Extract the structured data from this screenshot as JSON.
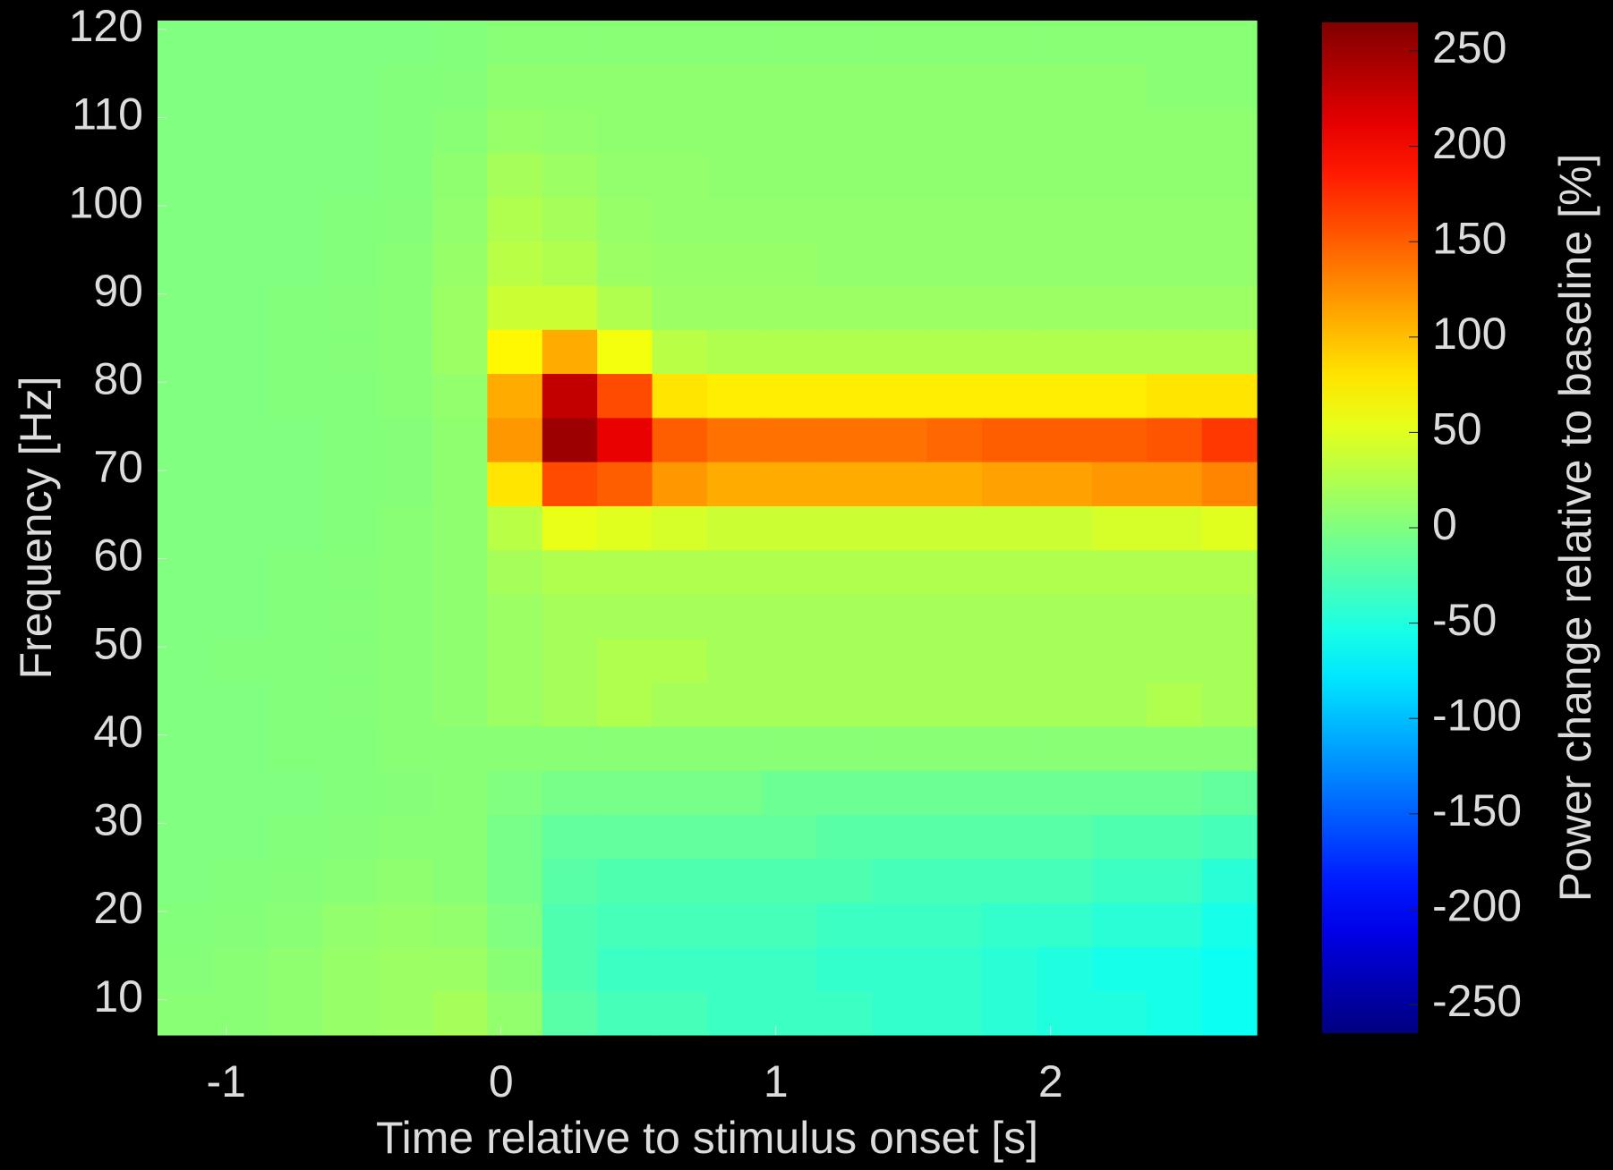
{
  "chart_data": {
    "type": "heatmap",
    "xlabel": "Time relative to stimulus onset [s]",
    "ylabel": "Frequency [Hz]",
    "colormap": "jet",
    "x": [
      -1.15,
      -0.95,
      -0.75,
      -0.55,
      -0.35,
      -0.15,
      0.05,
      0.25,
      0.45,
      0.65,
      0.85,
      1.05,
      1.25,
      1.45,
      1.65,
      1.85,
      2.05,
      2.25,
      2.45,
      2.65
    ],
    "y": [
      8.5,
      13.5,
      18.5,
      23.5,
      28.5,
      33.5,
      38.5,
      43.5,
      48.5,
      53.5,
      58.5,
      63.5,
      68.5,
      73.5,
      78.5,
      83.5,
      88.5,
      93.5,
      98.5,
      103.5,
      108.5,
      113.5,
      118.5
    ],
    "values": [
      [
        5,
        5,
        8,
        12,
        15,
        20,
        10,
        -20,
        -30,
        -30,
        -35,
        -35,
        -35,
        -40,
        -40,
        -45,
        -50,
        -50,
        -55,
        -60
      ],
      [
        3,
        5,
        8,
        12,
        15,
        15,
        5,
        -25,
        -35,
        -35,
        -35,
        -35,
        -40,
        -40,
        -40,
        -45,
        -50,
        -55,
        -55,
        -60
      ],
      [
        2,
        3,
        5,
        10,
        12,
        10,
        0,
        -25,
        -30,
        -30,
        -30,
        -30,
        -35,
        -35,
        -35,
        -40,
        -40,
        -45,
        -45,
        -55
      ],
      [
        0,
        2,
        3,
        5,
        8,
        5,
        -5,
        -20,
        -25,
        -25,
        -25,
        -25,
        -25,
        -30,
        -30,
        -30,
        -30,
        -35,
        -35,
        -45
      ],
      [
        0,
        0,
        2,
        3,
        5,
        5,
        -5,
        -15,
        -15,
        -15,
        -15,
        -15,
        -20,
        -20,
        -20,
        -20,
        -20,
        -25,
        -25,
        -30
      ],
      [
        0,
        0,
        0,
        2,
        3,
        5,
        0,
        -5,
        -5,
        -5,
        -5,
        -10,
        -10,
        -10,
        -10,
        -10,
        -10,
        -10,
        -10,
        -15
      ],
      [
        0,
        0,
        2,
        2,
        5,
        5,
        5,
        5,
        5,
        5,
        5,
        5,
        5,
        5,
        5,
        5,
        5,
        5,
        5,
        5
      ],
      [
        0,
        0,
        2,
        3,
        5,
        8,
        15,
        20,
        25,
        20,
        20,
        20,
        20,
        20,
        20,
        20,
        20,
        20,
        25,
        20
      ],
      [
        0,
        2,
        2,
        3,
        5,
        8,
        15,
        20,
        25,
        25,
        20,
        20,
        20,
        20,
        20,
        20,
        20,
        20,
        20,
        20
      ],
      [
        0,
        0,
        2,
        3,
        5,
        8,
        15,
        20,
        20,
        20,
        20,
        20,
        20,
        20,
        20,
        20,
        20,
        20,
        20,
        20
      ],
      [
        0,
        0,
        2,
        3,
        5,
        8,
        20,
        25,
        25,
        25,
        25,
        25,
        25,
        25,
        25,
        25,
        25,
        25,
        25,
        25
      ],
      [
        0,
        0,
        0,
        2,
        5,
        8,
        30,
        55,
        50,
        45,
        40,
        40,
        40,
        40,
        40,
        40,
        40,
        45,
        45,
        50
      ],
      [
        0,
        0,
        0,
        2,
        3,
        8,
        80,
        160,
        150,
        120,
        110,
        110,
        110,
        110,
        110,
        115,
        115,
        120,
        120,
        130
      ],
      [
        0,
        0,
        0,
        2,
        3,
        8,
        120,
        250,
        210,
        150,
        140,
        140,
        140,
        140,
        145,
        150,
        150,
        150,
        155,
        170
      ],
      [
        0,
        0,
        2,
        2,
        5,
        10,
        110,
        230,
        160,
        80,
        75,
        75,
        75,
        75,
        75,
        75,
        75,
        75,
        80,
        80
      ],
      [
        0,
        0,
        2,
        3,
        5,
        15,
        70,
        110,
        60,
        30,
        25,
        25,
        25,
        25,
        25,
        25,
        25,
        25,
        25,
        25
      ],
      [
        0,
        0,
        2,
        3,
        5,
        15,
        40,
        40,
        25,
        15,
        15,
        15,
        15,
        15,
        15,
        15,
        15,
        15,
        15,
        15
      ],
      [
        0,
        0,
        0,
        2,
        5,
        12,
        30,
        25,
        15,
        12,
        12,
        12,
        10,
        10,
        10,
        10,
        10,
        10,
        10,
        10
      ],
      [
        0,
        0,
        0,
        2,
        3,
        10,
        25,
        20,
        12,
        10,
        10,
        10,
        10,
        10,
        10,
        10,
        10,
        10,
        10,
        10
      ],
      [
        0,
        0,
        0,
        0,
        2,
        8,
        20,
        15,
        10,
        10,
        8,
        8,
        8,
        8,
        8,
        8,
        8,
        8,
        8,
        8
      ],
      [
        0,
        0,
        0,
        0,
        2,
        5,
        12,
        10,
        8,
        8,
        8,
        8,
        8,
        8,
        8,
        8,
        8,
        8,
        8,
        8
      ],
      [
        0,
        0,
        0,
        0,
        2,
        3,
        8,
        8,
        8,
        8,
        8,
        8,
        8,
        8,
        8,
        8,
        8,
        8,
        5,
        5
      ],
      [
        0,
        0,
        0,
        0,
        0,
        2,
        5,
        5,
        5,
        5,
        5,
        5,
        5,
        5,
        5,
        5,
        5,
        5,
        5,
        5
      ]
    ],
    "xlim": [
      -1.25,
      2.75
    ],
    "ylim": [
      6,
      121
    ],
    "xticks": [
      -1,
      0,
      1,
      2
    ],
    "yticks": [
      10,
      20,
      30,
      40,
      50,
      60,
      70,
      80,
      90,
      100,
      110,
      120
    ],
    "colorbar": {
      "label": "Power change relative to baseline [%]",
      "clim": [
        -265,
        265
      ],
      "ticks": [
        -250,
        -200,
        -150,
        -100,
        -50,
        0,
        50,
        100,
        150,
        200,
        250
      ]
    }
  }
}
